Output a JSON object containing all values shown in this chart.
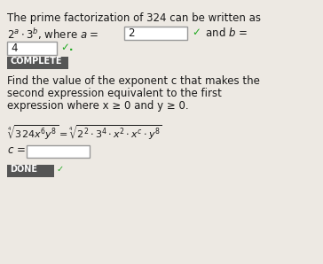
{
  "bg_color": "#ede9e3",
  "text_color": "#1a1a1a",
  "checkmark_color": "#22aa22",
  "complete_bg": "#555555",
  "complete_text_color": "#ffffff",
  "done_bg": "#555555",
  "done_text_color": "#ffffff",
  "done_check_color": "#22aa22",
  "title_line1": "The prime factorization of 324 can be written as",
  "complete_label": "COMPLETE",
  "done_label": "DONE",
  "body_line1": "Find the value of the exponent c that makes the",
  "body_line2": "second expression equivalent to the first",
  "body_line3": "expression where x ≥ 0 and y ≥ 0.",
  "fs_main": 8.5,
  "fs_math": 8.0,
  "fs_badge": 7.0
}
